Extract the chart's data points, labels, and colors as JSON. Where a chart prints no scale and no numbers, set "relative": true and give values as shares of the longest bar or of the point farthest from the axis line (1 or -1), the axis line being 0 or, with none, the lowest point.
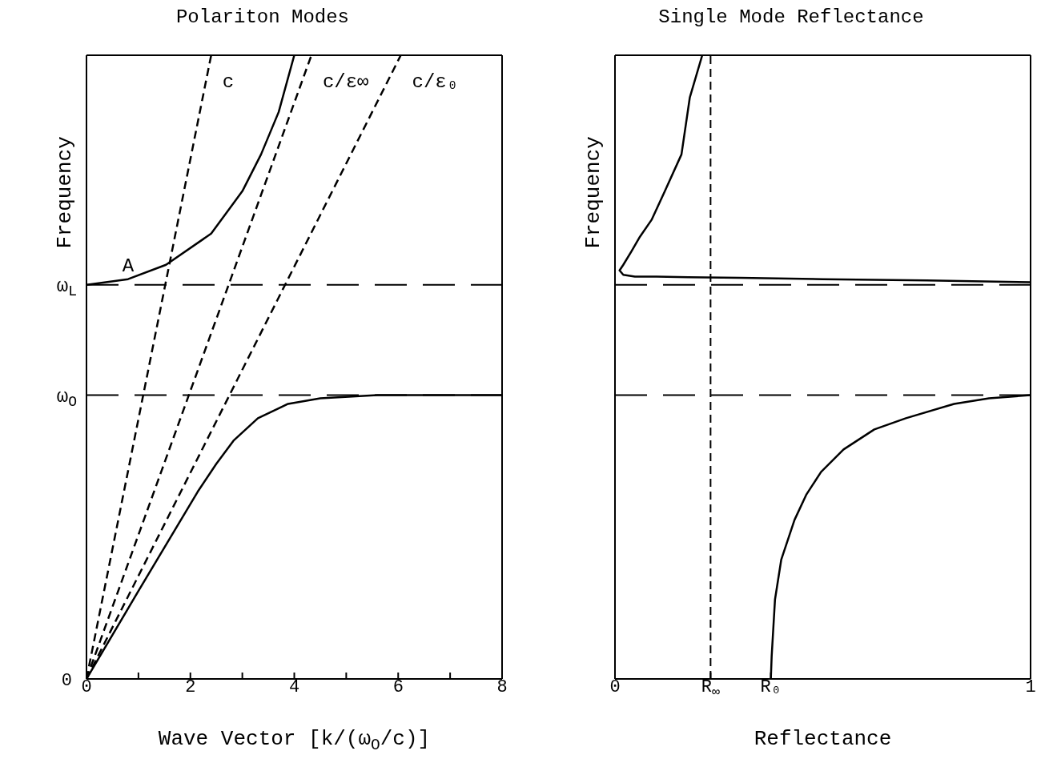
{
  "chart_data": [
    {
      "type": "line",
      "title": "Polariton Modes",
      "xlabel": "Wave Vector [k/(ω$_{O}$/c)]",
      "ylabel": "Frequency",
      "relative": true,
      "xlim": [
        0,
        8
      ],
      "xticks": [
        0,
        {
          "value": 1,
          "label": null
        },
        2,
        {
          "value": 3,
          "label": null
        },
        4,
        {
          "value": 5,
          "label": null
        },
        6,
        {
          "value": 7,
          "label": null
        },
        8
      ],
      "series": [
        {
          "name": "c",
          "line_style": "dashed",
          "color": "#000000",
          "x": [
            0,
            2.4
          ],
          "values": [
            0,
            1
          ]
        },
        {
          "name": "c/ε∞",
          "line_style": "dashed",
          "color": "#000000",
          "x": [
            0,
            4.33
          ],
          "values": [
            0,
            1
          ]
        },
        {
          "name": "c/ε₀",
          "line_style": "dashed",
          "color": "#000000",
          "x": [
            0,
            6.05
          ],
          "values": [
            0,
            1
          ]
        },
        {
          "line_style": "solid",
          "color": "#000000",
          "x": [
            0,
            0.8,
            1.53,
            2.4,
            3.0,
            3.36,
            3.7,
            4.0
          ],
          "values": [
            0.632,
            0.641,
            0.664,
            0.714,
            0.782,
            0.841,
            0.909,
            1
          ]
        },
        {
          "line_style": "solid",
          "color": "#000000",
          "x": [
            0,
            1,
            2.14,
            2.5,
            2.83,
            3.3,
            3.88,
            4.5,
            5.6,
            8
          ],
          "values": [
            0,
            0.141,
            0.3,
            0.345,
            0.382,
            0.418,
            0.441,
            0.45,
            0.455,
            0.455
          ]
        }
      ],
      "ref_lines": [
        {
          "axis": "y",
          "value": 0.455,
          "label": "ω$_{O}$",
          "line_style": "dashed",
          "color": "#000000"
        },
        {
          "axis": "y",
          "value": 0.632,
          "label": "ω$_{L}$",
          "line_style": "dashed",
          "color": "#000000"
        }
      ],
      "annotations": [
        {
          "text": "A",
          "x": 1.53,
          "y": 0.664
        },
        "0"
      ]
    },
    {
      "type": "line",
      "title": "Single Mode Reflectance",
      "xlabel": "Reflectance",
      "ylabel": "Frequency",
      "relative": true,
      "xlim": [
        0,
        1
      ],
      "xticks": [
        0,
        {
          "value": 0.23,
          "label": "R$_{∞}$"
        },
        {
          "value": 0.375,
          "label": "R₀"
        },
        1
      ],
      "series": [
        {
          "line_style": "solid",
          "color": "#000000",
          "x": [
            0.21,
            0.18,
            0.16,
            0.12,
            0.088,
            0.06,
            0.04,
            0.02,
            0.011,
            0.02,
            0.048,
            0.1,
            0.176,
            0.3,
            0.5,
            0.75,
            1
          ],
          "values": [
            1,
            0.932,
            0.841,
            0.782,
            0.736,
            0.709,
            0.686,
            0.664,
            0.655,
            0.648,
            0.645,
            0.645,
            0.644,
            0.643,
            0.641,
            0.639,
            0.636
          ]
        },
        {
          "line_style": "solid",
          "color": "#000000",
          "x": [
            0.375,
            0.377,
            0.385,
            0.4,
            0.432,
            0.46,
            0.496,
            0.55,
            0.624,
            0.7,
            0.816,
            0.9,
            1
          ],
          "values": [
            0,
            0.036,
            0.127,
            0.191,
            0.255,
            0.295,
            0.332,
            0.368,
            0.4,
            0.418,
            0.441,
            0.45,
            0.455
          ]
        }
      ],
      "ref_lines": [
        {
          "axis": "x",
          "value": 0.23,
          "line_style": "dashed",
          "color": "#000000"
        },
        {
          "axis": "y",
          "value": 0.455,
          "line_style": "dashed",
          "color": "#000000"
        },
        {
          "axis": "y",
          "value": 0.632,
          "line_style": "dashed",
          "color": "#000000"
        }
      ]
    }
  ]
}
